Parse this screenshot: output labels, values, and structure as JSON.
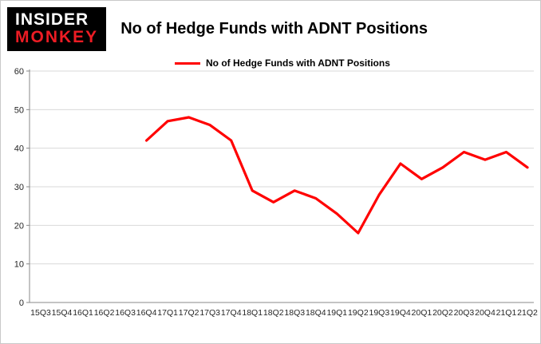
{
  "logo": {
    "line1": "INSIDER",
    "line2": "MONKEY"
  },
  "header": {
    "title": "No of Hedge Funds with ADNT Positions"
  },
  "legend": {
    "label": "No of Hedge Funds with ADNT Positions",
    "color": "#ff0000"
  },
  "colors": {
    "series": "#ff0000",
    "gridline": "#d9d9d9",
    "axis": "#898989",
    "tick_text": "#262626"
  },
  "chart_data": {
    "type": "line",
    "title": "No of Hedge Funds with ADNT Positions",
    "xlabel": "",
    "ylabel": "",
    "ylim": [
      0,
      60
    ],
    "ytick_step": 10,
    "grid": true,
    "legend_position": "top-left",
    "categories": [
      "15Q3",
      "15Q4",
      "16Q1",
      "16Q2",
      "16Q3",
      "16Q4",
      "17Q1",
      "17Q2",
      "17Q3",
      "17Q4",
      "18Q1",
      "18Q2",
      "18Q3",
      "18Q4",
      "19Q1",
      "19Q2",
      "19Q3",
      "19Q4",
      "20Q1",
      "20Q2",
      "20Q3",
      "20Q4",
      "21Q1",
      "21Q2"
    ],
    "series": [
      {
        "name": "No of Hedge Funds with ADNT Positions",
        "color": "#ff0000",
        "values": [
          null,
          null,
          null,
          null,
          null,
          42,
          47,
          48,
          46,
          42,
          29,
          26,
          29,
          27,
          23,
          18,
          28,
          36,
          32,
          35,
          39,
          37,
          39,
          35
        ]
      }
    ]
  }
}
